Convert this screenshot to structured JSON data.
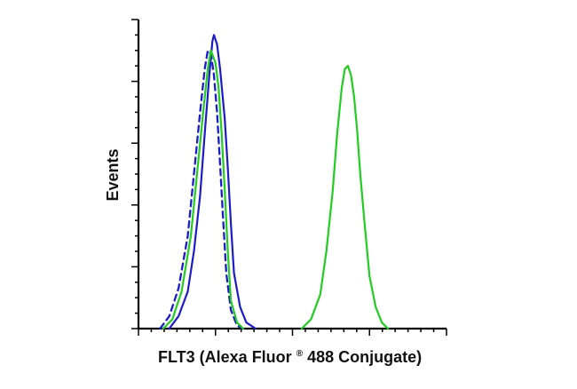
{
  "chart_data": {
    "type": "line",
    "title": "",
    "xlabel": {
      "prefix": "FLT3 (Alexa Fluor",
      "superscript": "®",
      "suffix": " 488 Conjugate)"
    },
    "ylabel": "Events",
    "xlim": [
      0,
      1
    ],
    "ylim": [
      0,
      1
    ],
    "grid": false,
    "legend": "none",
    "series": [
      {
        "color": "#1c1cc7",
        "style": "solid",
        "points": [
          [
            0.1,
            0.0
          ],
          [
            0.13,
            0.04
          ],
          [
            0.16,
            0.12
          ],
          [
            0.18,
            0.25
          ],
          [
            0.2,
            0.43
          ],
          [
            0.215,
            0.63
          ],
          [
            0.23,
            0.82
          ],
          [
            0.24,
            0.93
          ],
          [
            0.245,
            0.95
          ],
          [
            0.255,
            0.92
          ],
          [
            0.265,
            0.84
          ],
          [
            0.28,
            0.68
          ],
          [
            0.29,
            0.52
          ],
          [
            0.3,
            0.34
          ],
          [
            0.31,
            0.18
          ],
          [
            0.33,
            0.07
          ],
          [
            0.35,
            0.02
          ],
          [
            0.38,
            0.0
          ]
        ]
      },
      {
        "color": "#1c1cc7",
        "style": "dashed",
        "points": [
          [
            0.07,
            0.0
          ],
          [
            0.1,
            0.04
          ],
          [
            0.13,
            0.13
          ],
          [
            0.16,
            0.3
          ],
          [
            0.18,
            0.5
          ],
          [
            0.2,
            0.7
          ],
          [
            0.215,
            0.84
          ],
          [
            0.225,
            0.9
          ],
          [
            0.235,
            0.89
          ],
          [
            0.245,
            0.82
          ],
          [
            0.255,
            0.7
          ],
          [
            0.265,
            0.53
          ],
          [
            0.275,
            0.35
          ],
          [
            0.285,
            0.18
          ],
          [
            0.3,
            0.06
          ],
          [
            0.32,
            0.01
          ],
          [
            0.34,
            0.0
          ]
        ]
      },
      {
        "color": "#22cc22",
        "style": "solid",
        "points": [
          [
            0.08,
            0.0
          ],
          [
            0.11,
            0.03
          ],
          [
            0.14,
            0.12
          ],
          [
            0.17,
            0.3
          ],
          [
            0.19,
            0.5
          ],
          [
            0.21,
            0.7
          ],
          [
            0.225,
            0.84
          ],
          [
            0.235,
            0.9
          ],
          [
            0.25,
            0.86
          ],
          [
            0.26,
            0.78
          ],
          [
            0.27,
            0.63
          ],
          [
            0.28,
            0.45
          ],
          [
            0.29,
            0.25
          ],
          [
            0.3,
            0.09
          ],
          [
            0.32,
            0.02
          ],
          [
            0.34,
            0.0
          ]
        ]
      },
      {
        "color": "#22cc22",
        "style": "solid",
        "points": [
          [
            0.53,
            0.0
          ],
          [
            0.56,
            0.03
          ],
          [
            0.59,
            0.11
          ],
          [
            0.61,
            0.25
          ],
          [
            0.63,
            0.44
          ],
          [
            0.645,
            0.63
          ],
          [
            0.66,
            0.78
          ],
          [
            0.67,
            0.84
          ],
          [
            0.68,
            0.85
          ],
          [
            0.69,
            0.82
          ],
          [
            0.7,
            0.75
          ],
          [
            0.71,
            0.64
          ],
          [
            0.72,
            0.5
          ],
          [
            0.735,
            0.33
          ],
          [
            0.75,
            0.17
          ],
          [
            0.77,
            0.07
          ],
          [
            0.79,
            0.02
          ],
          [
            0.81,
            0.0
          ]
        ]
      }
    ]
  }
}
